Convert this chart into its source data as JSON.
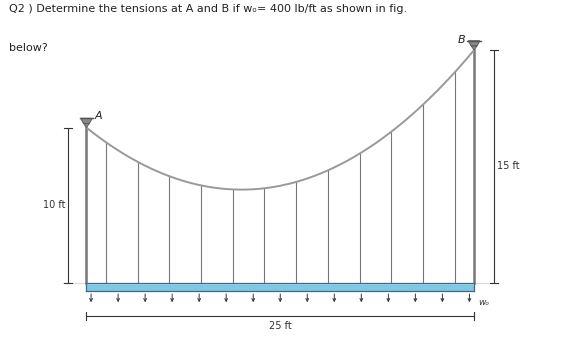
{
  "title_line1": "Q2 ) Determine the tensions at A and B if w",
  "title_line1_sub": "ₒ",
  "title_line1_end": "= 400 lb/ft as shown in fig.",
  "title_line2": "below?",
  "span": 25,
  "height_A": 10,
  "height_B": 15,
  "xv": 10.0,
  "a_coef": 0.04,
  "num_hangers_upper": 12,
  "num_load_arrows": 15,
  "deck_y": 0.0,
  "deck_thickness": 0.55,
  "deck_color": "#7ec8e3",
  "deck_top_color": "#9fd8ee",
  "deck_bot_color": "#5aaac8",
  "support_color": "#777777",
  "cable_color": "#999999",
  "hanger_color": "#777777",
  "bg_color": "#ffffff",
  "text_color": "#222222",
  "dim_color": "#333333",
  "label_A": "A",
  "label_B": "B",
  "label_10ft": "10 ft",
  "label_15ft": "15 ft",
  "label_25ft": "25 ft",
  "label_w0": "wₒ",
  "cap_color": "#888888",
  "cap_dark": "#555555",
  "arrow_color": "#333333",
  "xlim": [
    -4,
    30
  ],
  "ylim": [
    -4.5,
    18
  ]
}
